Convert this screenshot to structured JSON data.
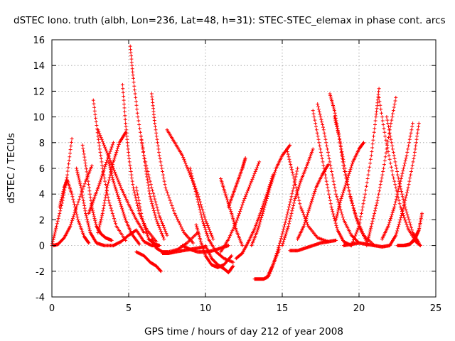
{
  "chart_data": {
    "type": "scatter",
    "title": "dSTEC Iono. truth (albh, Lon=236, Lat=48, h=31): STEC-STEC_elemax in phase cont. arcs",
    "xlabel": "GPS time / hours of day 212 of year 2008",
    "ylabel": "dSTEC  / TECUs",
    "xlim": [
      0,
      25
    ],
    "ylim": [
      -4,
      16
    ],
    "xticks": [
      0,
      5,
      10,
      15,
      20,
      25
    ],
    "yticks": [
      -4,
      -2,
      0,
      2,
      4,
      6,
      8,
      10,
      12,
      14,
      16
    ],
    "xtick_labels": [
      "0",
      "5",
      "10",
      "15",
      "20",
      "25"
    ],
    "ytick_labels": [
      "-4",
      "-2",
      "0",
      "2",
      "4",
      "6",
      "8",
      "10",
      "12",
      "14",
      "16"
    ],
    "grid": true,
    "marker": "+",
    "color": "#ff0000",
    "series": [
      {
        "x": [
          0.0,
          0.3,
          0.7,
          1.0,
          1.3
        ],
        "y": [
          0.0,
          1.5,
          3.5,
          5.5,
          8.3
        ]
      },
      {
        "x": [
          0.1,
          0.4,
          0.8,
          1.2,
          1.6,
          2.2,
          2.6
        ],
        "y": [
          0.0,
          0.1,
          0.6,
          1.5,
          3.0,
          5.0,
          6.2
        ]
      },
      {
        "x": [
          0.5,
          0.8,
          1.0,
          1.3,
          1.7,
          2.1,
          2.4
        ],
        "y": [
          3.0,
          4.5,
          5.1,
          4.0,
          2.0,
          0.7,
          0.2
        ]
      },
      {
        "x": [
          1.6,
          1.9,
          2.2,
          2.5,
          2.9,
          3.4,
          4.0
        ],
        "y": [
          6.0,
          4.5,
          2.5,
          1.0,
          0.2,
          0.0,
          0.0
        ]
      },
      {
        "x": [
          2.0,
          2.3,
          2.6,
          2.9,
          3.2,
          3.5,
          3.9
        ],
        "y": [
          7.8,
          5.5,
          3.0,
          1.5,
          0.9,
          0.6,
          0.4
        ]
      },
      {
        "x": [
          2.4,
          2.7,
          3.1,
          3.5,
          4.0
        ],
        "y": [
          2.5,
          3.5,
          4.8,
          6.3,
          8.0
        ]
      },
      {
        "x": [
          2.7,
          3.0,
          3.3,
          3.7,
          4.2,
          4.8
        ],
        "y": [
          11.3,
          8.5,
          6.0,
          3.5,
          1.5,
          0.4
        ]
      },
      {
        "x": [
          3.0,
          3.3,
          3.6,
          4.0,
          4.4,
          4.8
        ],
        "y": [
          1.0,
          2.5,
          4.5,
          6.5,
          8.0,
          8.8
        ]
      },
      {
        "x": [
          3.0,
          3.5,
          4.0,
          4.5,
          5.0,
          5.5,
          6.0
        ],
        "y": [
          9.0,
          7.5,
          6.0,
          4.5,
          3.2,
          2.0,
          1.0
        ]
      },
      {
        "x": [
          3.7,
          4.0,
          4.4,
          4.8,
          5.2,
          5.7
        ],
        "y": [
          6.5,
          5.0,
          3.5,
          2.0,
          0.9,
          0.1
        ]
      },
      {
        "x": [
          4.0,
          4.5,
          5.0,
          5.5,
          6.0,
          6.5,
          7.0
        ],
        "y": [
          0.0,
          0.3,
          0.8,
          1.2,
          0.3,
          0.0,
          0.0
        ]
      },
      {
        "x": [
          4.6,
          4.8,
          5.0,
          5.3,
          5.7,
          6.2,
          6.8
        ],
        "y": [
          12.5,
          9.5,
          7.0,
          4.5,
          2.5,
          1.2,
          0.3
        ]
      },
      {
        "x": [
          5.1,
          5.3,
          5.6,
          6.0,
          6.5,
          7.0,
          7.5
        ],
        "y": [
          15.5,
          13.0,
          10.0,
          7.0,
          4.5,
          2.3,
          0.8
        ]
      },
      {
        "x": [
          5.5,
          5.9,
          6.3,
          6.7,
          7.0
        ],
        "y": [
          4.5,
          2.0,
          0.5,
          0.1,
          0.0
        ]
      },
      {
        "x": [
          5.8,
          6.1,
          6.4,
          6.8,
          7.3
        ],
        "y": [
          8.5,
          6.0,
          3.8,
          2.0,
          0.5
        ]
      },
      {
        "x": [
          5.5,
          6.0,
          6.4,
          6.8,
          7.1
        ],
        "y": [
          -0.5,
          -0.8,
          -1.3,
          -1.6,
          -2.0
        ]
      },
      {
        "x": [
          6.5,
          6.7,
          7.0,
          7.4,
          8.0,
          8.6,
          9.2
        ],
        "y": [
          11.8,
          9.5,
          7.0,
          4.5,
          2.5,
          1.0,
          0.2
        ]
      },
      {
        "x": [
          6.5,
          6.8,
          7.2,
          7.6,
          8.2,
          8.8,
          9.5
        ],
        "y": [
          0.5,
          -0.2,
          -0.5,
          -0.5,
          -0.3,
          0.2,
          1.0
        ]
      },
      {
        "x": [
          7.2,
          7.6,
          8.0,
          8.5,
          9.0,
          9.5,
          10.0
        ],
        "y": [
          -0.6,
          -0.6,
          -0.5,
          -0.4,
          -0.3,
          -0.2,
          -0.1
        ]
      },
      {
        "x": [
          7.5,
          8.0,
          8.5,
          9.0,
          9.5,
          10.0,
          10.5
        ],
        "y": [
          9.0,
          8.0,
          7.0,
          5.5,
          4.0,
          2.0,
          0.5
        ]
      },
      {
        "x": [
          8.5,
          9.0,
          9.5,
          10.0,
          10.5,
          11.0,
          11.5
        ],
        "y": [
          0.0,
          -0.3,
          -0.5,
          -0.5,
          -0.4,
          -0.2,
          0.0
        ]
      },
      {
        "x": [
          9.0,
          9.4,
          9.8,
          10.2,
          10.7,
          11.2,
          11.8
        ],
        "y": [
          6.0,
          4.0,
          2.0,
          0.5,
          -0.5,
          -1.0,
          -1.3
        ]
      },
      {
        "x": [
          9.4,
          9.7,
          10.0,
          10.4,
          10.8,
          11.2,
          11.7
        ],
        "y": [
          1.6,
          0.3,
          -0.8,
          -1.5,
          -1.7,
          -1.5,
          -0.8
        ]
      },
      {
        "x": [
          10.0,
          10.4,
          10.8,
          11.2,
          11.5,
          11.8
        ],
        "y": [
          0.0,
          -1.0,
          -1.5,
          -1.8,
          -2.1,
          -1.6
        ]
      },
      {
        "x": [
          11.0,
          11.3,
          11.7,
          12.0,
          12.4
        ],
        "y": [
          5.2,
          4.0,
          2.5,
          1.2,
          0.0
        ]
      },
      {
        "x": [
          11.5,
          11.8,
          12.1,
          12.4,
          12.6
        ],
        "y": [
          3.0,
          4.0,
          5.0,
          6.0,
          6.8
        ]
      },
      {
        "x": [
          11.0,
          11.5,
          12.0,
          12.5,
          13.0,
          13.5
        ],
        "y": [
          -0.5,
          0.5,
          1.8,
          3.5,
          5.0,
          6.5
        ]
      },
      {
        "x": [
          12.0,
          12.4,
          12.8,
          13.2,
          13.6,
          14.0,
          14.4
        ],
        "y": [
          -1.0,
          -0.6,
          0.3,
          1.3,
          2.6,
          4.0,
          5.5
        ]
      },
      {
        "x": [
          13.0,
          13.4,
          13.8,
          14.2,
          14.6,
          15.0,
          15.5
        ],
        "y": [
          0.0,
          1.2,
          2.8,
          4.5,
          6.0,
          7.0,
          7.8
        ]
      },
      {
        "x": [
          13.2,
          13.5,
          13.8,
          14.1,
          14.4,
          14.8
        ],
        "y": [
          -2.6,
          -2.6,
          -2.6,
          -2.4,
          -1.5,
          -0.3
        ]
      },
      {
        "x": [
          14.0,
          14.4,
          14.8,
          15.2,
          15.6,
          16.0
        ],
        "y": [
          -2.5,
          -1.5,
          0.0,
          1.8,
          3.8,
          6.0
        ]
      },
      {
        "x": [
          15.0,
          15.4,
          15.8,
          16.2,
          16.6,
          17.0
        ],
        "y": [
          0.0,
          1.5,
          3.5,
          5.0,
          6.2,
          7.5
        ]
      },
      {
        "x": [
          15.3,
          15.7,
          16.2,
          16.7,
          17.3,
          18.0
        ],
        "y": [
          7.5,
          5.5,
          3.0,
          1.5,
          0.6,
          0.3
        ]
      },
      {
        "x": [
          15.5,
          16.0,
          16.5,
          17.0,
          17.5,
          18.0,
          18.5
        ],
        "y": [
          -0.4,
          -0.4,
          -0.2,
          0.0,
          0.2,
          0.3,
          0.4
        ]
      },
      {
        "x": [
          16.0,
          16.4,
          16.8,
          17.2,
          17.6,
          18.0
        ],
        "y": [
          0.5,
          1.5,
          3.0,
          4.5,
          5.5,
          6.3
        ]
      },
      {
        "x": [
          17.0,
          17.4,
          17.8,
          18.2,
          18.6,
          19.0,
          19.5
        ],
        "y": [
          10.5,
          8.0,
          5.5,
          3.0,
          1.2,
          0.3,
          0.0
        ]
      },
      {
        "x": [
          17.3,
          17.7,
          18.1,
          18.5,
          19.0,
          19.5,
          20.0
        ],
        "y": [
          11.0,
          9.0,
          6.5,
          4.0,
          2.0,
          0.8,
          0.2
        ]
      },
      {
        "x": [
          18.1,
          18.4,
          18.7,
          19.0,
          19.5,
          20.0,
          20.5
        ],
        "y": [
          11.8,
          10.5,
          8.5,
          6.0,
          3.5,
          1.5,
          0.3
        ]
      },
      {
        "x": [
          18.4,
          18.7,
          19.0,
          19.4,
          19.8,
          20.3,
          21.0
        ],
        "y": [
          10.0,
          8.5,
          6.5,
          4.0,
          2.2,
          0.8,
          0.0
        ]
      },
      {
        "x": [
          18.5,
          18.8,
          19.2,
          19.6,
          20.0,
          20.3
        ],
        "y": [
          2.0,
          3.5,
          5.0,
          6.5,
          7.5,
          8.0
        ]
      },
      {
        "x": [
          19.0,
          19.5,
          20.0,
          20.5,
          21.0,
          21.5,
          22.0
        ],
        "y": [
          0.0,
          0.1,
          0.2,
          0.1,
          0.0,
          -0.1,
          0.0
        ]
      },
      {
        "x": [
          19.5,
          20.0,
          20.4,
          20.8,
          21.1,
          21.3
        ],
        "y": [
          0.0,
          1.5,
          4.0,
          7.0,
          10.0,
          12.2
        ]
      },
      {
        "x": [
          20.5,
          20.8,
          21.2,
          21.6,
          22.0,
          22.4
        ],
        "y": [
          0.0,
          1.5,
          3.5,
          6.0,
          9.0,
          11.5
        ]
      },
      {
        "x": [
          21.3,
          21.7,
          22.2,
          22.7,
          23.2,
          23.7,
          24.0
        ],
        "y": [
          11.5,
          8.5,
          5.5,
          3.0,
          1.3,
          0.3,
          0.0
        ]
      },
      {
        "x": [
          21.8,
          22.2,
          22.6,
          23.0,
          23.5,
          23.9
        ],
        "y": [
          10.0,
          7.5,
          5.0,
          3.0,
          1.0,
          0.2
        ]
      },
      {
        "x": [
          21.5,
          21.9,
          22.3,
          22.7,
          23.1,
          23.5
        ],
        "y": [
          0.5,
          1.5,
          3.0,
          5.0,
          7.0,
          9.5
        ]
      },
      {
        "x": [
          22.0,
          22.4,
          22.8,
          23.2,
          23.6,
          23.9
        ],
        "y": [
          0.0,
          0.8,
          2.5,
          4.5,
          7.0,
          9.5
        ]
      },
      {
        "x": [
          22.5,
          22.9,
          23.3,
          23.6,
          23.9
        ],
        "y": [
          0.0,
          0.0,
          0.1,
          0.5,
          1.2
        ]
      },
      {
        "x": [
          23.0,
          23.3,
          23.6,
          23.9,
          24.1
        ],
        "y": [
          0.0,
          0.1,
          0.4,
          1.2,
          2.5
        ]
      }
    ]
  }
}
